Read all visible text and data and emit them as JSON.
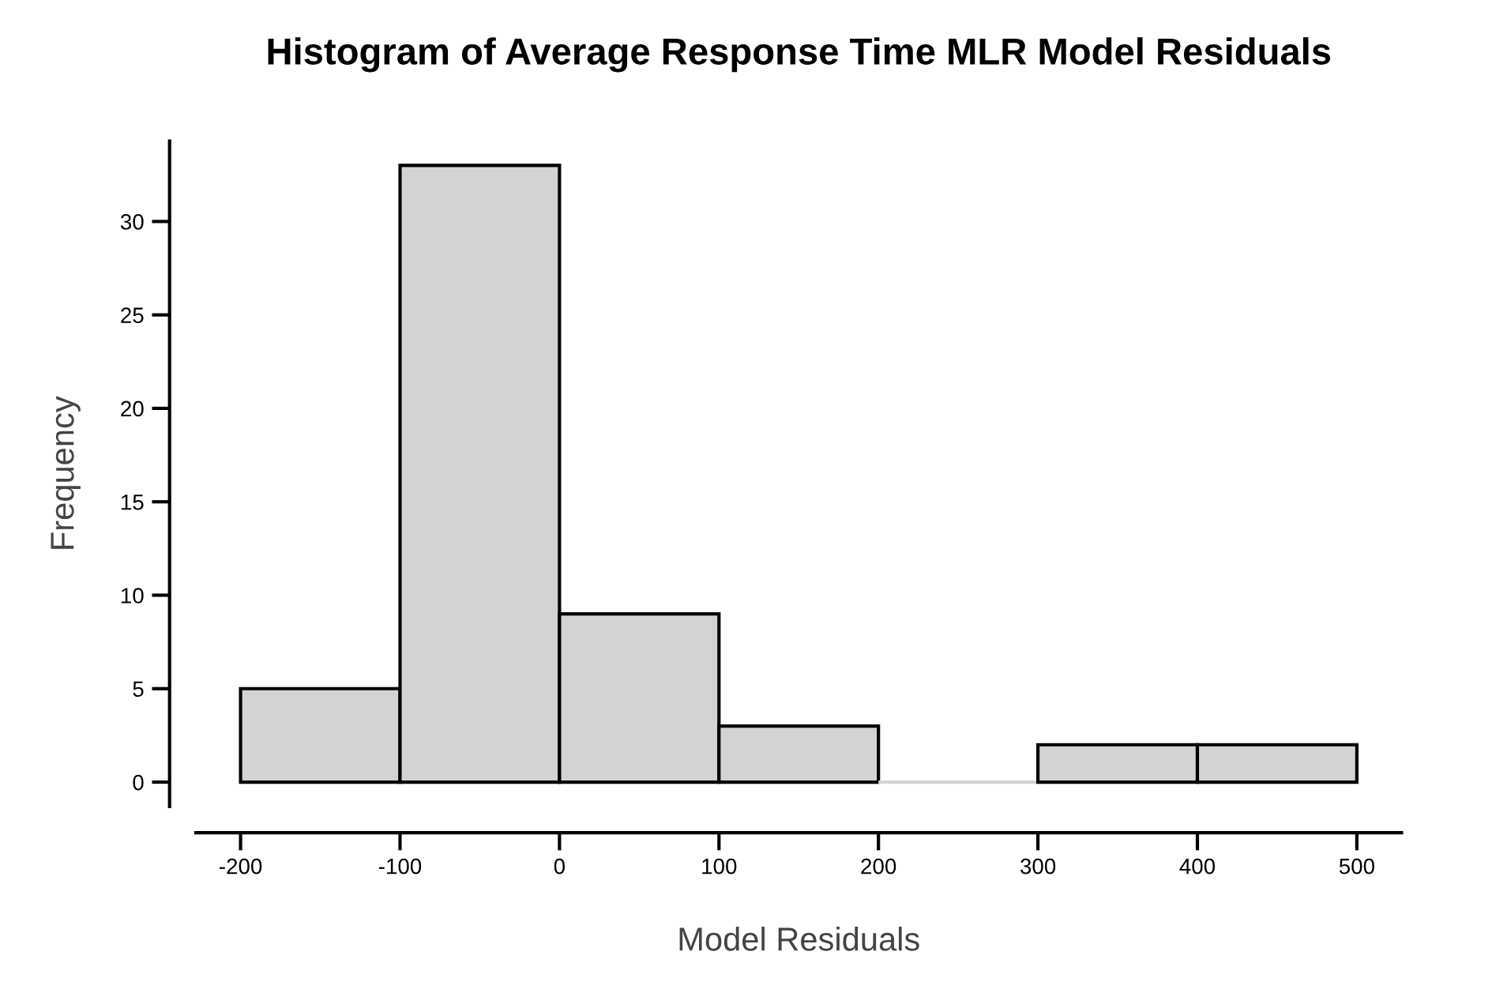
{
  "chart_data": {
    "type": "histogram",
    "title": "Histogram of Average Response Time MLR Model Residuals",
    "xlabel": "Model Residuals",
    "ylabel": "Frequency",
    "bins": [
      -200,
      -100,
      0,
      100,
      200,
      300,
      400,
      500
    ],
    "values": [
      5,
      33,
      9,
      3,
      0,
      2,
      2
    ],
    "color": "#d3d3d3",
    "xlim": [
      -228,
      528
    ],
    "ylim": [
      -1.3,
      34.3
    ],
    "xticks": [
      -200,
      -100,
      0,
      100,
      200,
      300,
      400,
      500
    ],
    "yticks": [
      0,
      5,
      10,
      15,
      20,
      25,
      30
    ],
    "grid": false,
    "legend": false
  }
}
